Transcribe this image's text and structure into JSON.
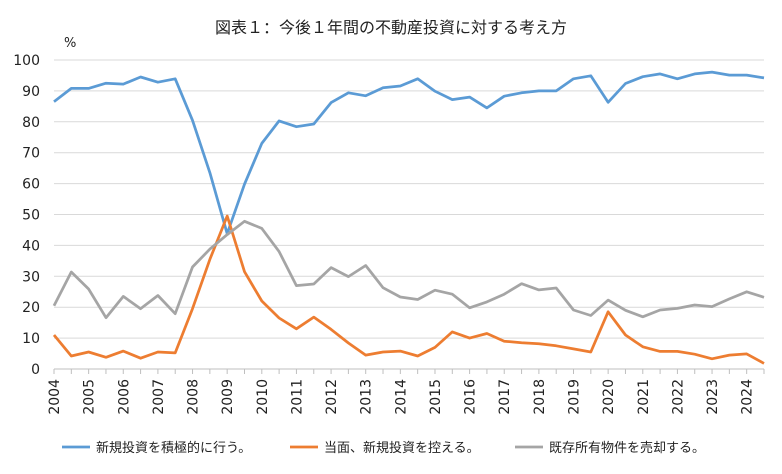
{
  "chart_data": {
    "type": "line",
    "title": "図表１：今後１年間の不動産投資に対する考え方",
    "ylabel": "%",
    "ylim": [
      0,
      100
    ],
    "yticks": [
      0,
      10,
      20,
      30,
      40,
      50,
      60,
      70,
      80,
      90,
      100
    ],
    "xlim": [
      2004,
      2024.5
    ],
    "year_labels": [
      "2004",
      "2005",
      "2006",
      "2007",
      "2008",
      "2009",
      "2010",
      "2011",
      "2012",
      "2013",
      "2014",
      "2015",
      "2016",
      "2017",
      "2018",
      "2019",
      "2020",
      "2021",
      "2022",
      "2023",
      "2024"
    ],
    "grid": true,
    "legend_position": "bottom",
    "series": [
      {
        "name": "新規投資を積極的に行う。",
        "color": "#5b9bd5",
        "values": [
          [
            2004.0,
            86.5
          ],
          [
            2004.5,
            90.8
          ],
          [
            2005.0,
            90.8
          ],
          [
            2005.5,
            92.5
          ],
          [
            2006.0,
            92.2
          ],
          [
            2006.5,
            94.5
          ],
          [
            2007.0,
            92.8
          ],
          [
            2007.5,
            93.9
          ],
          [
            2008.0,
            80.5
          ],
          [
            2008.5,
            63.5
          ],
          [
            2009.0,
            43.8
          ],
          [
            2009.5,
            59.8
          ],
          [
            2010.0,
            73.0
          ],
          [
            2010.5,
            80.3
          ],
          [
            2011.0,
            78.4
          ],
          [
            2011.5,
            79.3
          ],
          [
            2012.0,
            86.2
          ],
          [
            2012.5,
            89.4
          ],
          [
            2013.0,
            88.4
          ],
          [
            2013.5,
            91.0
          ],
          [
            2014.0,
            91.6
          ],
          [
            2014.5,
            93.9
          ],
          [
            2015.0,
            89.9
          ],
          [
            2015.5,
            87.2
          ],
          [
            2016.0,
            88.0
          ],
          [
            2016.5,
            84.5
          ],
          [
            2017.0,
            88.3
          ],
          [
            2017.5,
            89.4
          ],
          [
            2018.0,
            90.0
          ],
          [
            2018.5,
            90.0
          ],
          [
            2019.0,
            93.9
          ],
          [
            2019.5,
            94.9
          ],
          [
            2020.0,
            86.3
          ],
          [
            2020.5,
            92.4
          ],
          [
            2021.0,
            94.6
          ],
          [
            2021.5,
            95.5
          ],
          [
            2022.0,
            93.9
          ],
          [
            2022.5,
            95.5
          ],
          [
            2023.0,
            96.1
          ],
          [
            2023.5,
            95.1
          ],
          [
            2024.0,
            95.1
          ],
          [
            2024.5,
            94.2
          ]
        ]
      },
      {
        "name": "当面、新規投資を控える。",
        "color": "#ed7d31",
        "values": [
          [
            2004.0,
            11.0
          ],
          [
            2004.5,
            4.2
          ],
          [
            2005.0,
            5.5
          ],
          [
            2005.5,
            3.8
          ],
          [
            2006.0,
            5.8
          ],
          [
            2006.5,
            3.5
          ],
          [
            2007.0,
            5.5
          ],
          [
            2007.5,
            5.2
          ],
          [
            2008.0,
            19.5
          ],
          [
            2008.5,
            35.5
          ],
          [
            2009.0,
            49.5
          ],
          [
            2009.5,
            31.5
          ],
          [
            2010.0,
            22.0
          ],
          [
            2010.5,
            16.5
          ],
          [
            2011.0,
            13.0
          ],
          [
            2011.5,
            16.8
          ],
          [
            2012.0,
            12.8
          ],
          [
            2012.5,
            8.4
          ],
          [
            2013.0,
            4.5
          ],
          [
            2013.5,
            5.5
          ],
          [
            2014.0,
            5.8
          ],
          [
            2014.5,
            4.2
          ],
          [
            2015.0,
            7.0
          ],
          [
            2015.5,
            12.0
          ],
          [
            2016.0,
            10.0
          ],
          [
            2016.5,
            11.5
          ],
          [
            2017.0,
            9.0
          ],
          [
            2017.5,
            8.5
          ],
          [
            2018.0,
            8.2
          ],
          [
            2018.5,
            7.5
          ],
          [
            2019.0,
            6.5
          ],
          [
            2019.5,
            5.5
          ],
          [
            2020.0,
            18.5
          ],
          [
            2020.5,
            11.0
          ],
          [
            2021.0,
            7.2
          ],
          [
            2021.5,
            5.7
          ],
          [
            2022.0,
            5.7
          ],
          [
            2022.5,
            4.8
          ],
          [
            2023.0,
            3.3
          ],
          [
            2023.5,
            4.5
          ],
          [
            2024.0,
            4.9
          ],
          [
            2024.5,
            1.8
          ]
        ]
      },
      {
        "name": "既存所有物件を売却する。",
        "color": "#a5a5a5",
        "values": [
          [
            2004.0,
            20.5
          ],
          [
            2004.5,
            31.4
          ],
          [
            2005.0,
            25.9
          ],
          [
            2005.5,
            16.6
          ],
          [
            2006.0,
            23.5
          ],
          [
            2006.5,
            19.5
          ],
          [
            2007.0,
            23.8
          ],
          [
            2007.5,
            17.9
          ],
          [
            2008.0,
            33.0
          ],
          [
            2008.5,
            38.8
          ],
          [
            2009.0,
            43.5
          ],
          [
            2009.5,
            47.8
          ],
          [
            2010.0,
            45.5
          ],
          [
            2010.5,
            38.0
          ],
          [
            2011.0,
            27.0
          ],
          [
            2011.5,
            27.5
          ],
          [
            2012.0,
            32.8
          ],
          [
            2012.5,
            29.9
          ],
          [
            2013.0,
            33.5
          ],
          [
            2013.5,
            26.3
          ],
          [
            2014.0,
            23.3
          ],
          [
            2014.5,
            22.5
          ],
          [
            2015.0,
            25.5
          ],
          [
            2015.5,
            24.2
          ],
          [
            2016.0,
            19.8
          ],
          [
            2016.5,
            21.7
          ],
          [
            2017.0,
            24.2
          ],
          [
            2017.5,
            27.6
          ],
          [
            2018.0,
            25.6
          ],
          [
            2018.5,
            26.2
          ],
          [
            2019.0,
            19.1
          ],
          [
            2019.5,
            17.3
          ],
          [
            2020.0,
            22.3
          ],
          [
            2020.5,
            19.0
          ],
          [
            2021.0,
            16.9
          ],
          [
            2021.5,
            19.1
          ],
          [
            2022.0,
            19.6
          ],
          [
            2022.5,
            20.7
          ],
          [
            2023.0,
            20.2
          ],
          [
            2023.5,
            22.7
          ],
          [
            2024.0,
            25.0
          ],
          [
            2024.5,
            23.2
          ]
        ]
      }
    ]
  }
}
